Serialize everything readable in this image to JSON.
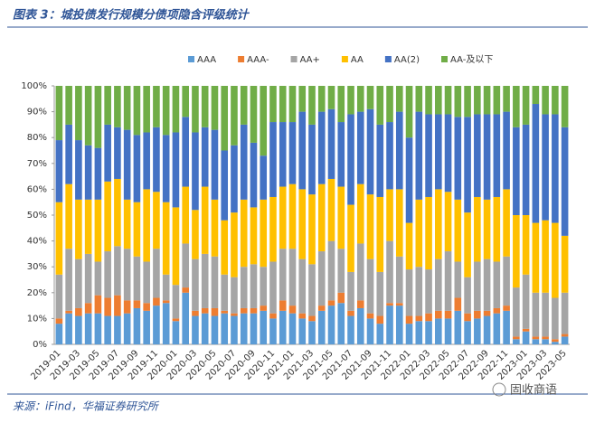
{
  "chart_data": {
    "type": "stacked_bar",
    "title": "图表 3：城投债发行规模分债项隐含评级统计",
    "source": "来源：iFind，华福证券研究所",
    "watermark": "固收商语",
    "categories": [
      "2019-01",
      null,
      "2019-03",
      null,
      "2019-05",
      null,
      "2019-07",
      null,
      "2019-09",
      null,
      "2019-11",
      null,
      "2020-01",
      null,
      "2020-03",
      null,
      "2020-05",
      null,
      "2020-07",
      null,
      "2020-09",
      null,
      "2020-11",
      null,
      "2021-01",
      null,
      "2021-03",
      null,
      "2021-05",
      null,
      "2021-07",
      null,
      "2021-09",
      null,
      "2021-11",
      null,
      "2022-01",
      null,
      "2022-03",
      null,
      "2022-05",
      null,
      "2022-07",
      null,
      "2022-09",
      null,
      "2022-11",
      null,
      "2023-01",
      null,
      "2023-03",
      null,
      "2023-05"
    ],
    "series": [
      {
        "name": "AAA",
        "color": "#5b9bd5",
        "values": [
          8,
          12,
          11,
          12,
          12,
          11,
          11,
          12,
          14,
          13,
          15,
          16,
          9,
          20,
          11,
          12,
          11,
          12,
          11,
          12,
          12,
          13,
          10,
          13,
          12,
          10,
          9,
          13,
          15,
          16,
          11,
          14,
          10,
          8,
          15,
          15,
          8,
          9,
          9,
          10,
          10,
          13,
          9,
          10,
          11,
          12,
          13,
          2,
          5,
          2,
          2,
          1,
          3
        ]
      },
      {
        "name": "AAA-",
        "color": "#ed7d31",
        "values": [
          2,
          1,
          3,
          4,
          7,
          7,
          8,
          5,
          3,
          3,
          3,
          1,
          1,
          2,
          2,
          2,
          3,
          1,
          1,
          2,
          2,
          2,
          2,
          4,
          3,
          2,
          2,
          2,
          2,
          4,
          2,
          3,
          2,
          3,
          1,
          1,
          3,
          2,
          3,
          3,
          3,
          5,
          3,
          3,
          2,
          2,
          2,
          1,
          1,
          1,
          1,
          1,
          1
        ]
      },
      {
        "name": "AA+",
        "color": "#a5a5a5",
        "values": [
          17,
          24,
          19,
          19,
          13,
          18,
          19,
          20,
          17,
          16,
          19,
          10,
          13,
          17,
          20,
          21,
          20,
          14,
          14,
          16,
          17,
          15,
          20,
          20,
          22,
          21,
          20,
          21,
          23,
          17,
          15,
          22,
          21,
          17,
          24,
          18,
          18,
          19,
          17,
          20,
          23,
          14,
          14,
          19,
          20,
          18,
          19,
          19,
          21,
          17,
          17,
          16,
          16
        ]
      },
      {
        "name": "AA",
        "color": "#ffc000",
        "values": [
          28,
          25,
          23,
          21,
          24,
          27,
          26,
          19,
          21,
          28,
          22,
          28,
          30,
          22,
          19,
          26,
          22,
          21,
          25,
          26,
          22,
          26,
          25,
          24,
          25,
          27,
          27,
          26,
          24,
          24,
          26,
          23,
          25,
          29,
          20,
          26,
          18,
          26,
          28,
          27,
          23,
          24,
          25,
          25,
          23,
          25,
          26,
          28,
          23,
          27,
          28,
          29,
          22
        ]
      },
      {
        "name": "AA(2)",
        "color": "#4472c4",
        "values": [
          24,
          23,
          23,
          21,
          20,
          22,
          20,
          27,
          26,
          22,
          25,
          26,
          29,
          27,
          30,
          23,
          27,
          27,
          26,
          29,
          25,
          17,
          29,
          25,
          24,
          30,
          27,
          28,
          27,
          25,
          35,
          28,
          33,
          28,
          26,
          30,
          33,
          34,
          32,
          29,
          30,
          32,
          37,
          32,
          33,
          32,
          30,
          34,
          35,
          46,
          41,
          42,
          42
        ]
      },
      {
        "name": "AA-及以下",
        "color": "#70ad47",
        "values": [
          21,
          15,
          21,
          23,
          24,
          15,
          16,
          17,
          19,
          18,
          16,
          19,
          18,
          12,
          18,
          16,
          17,
          25,
          23,
          15,
          22,
          27,
          14,
          14,
          14,
          10,
          15,
          10,
          9,
          14,
          11,
          10,
          9,
          15,
          14,
          10,
          20,
          10,
          11,
          11,
          11,
          12,
          12,
          11,
          11,
          11,
          10,
          16,
          15,
          7,
          11,
          11,
          16
        ]
      }
    ],
    "ylim": [
      0,
      100
    ],
    "yticks": [
      {
        "value": 0,
        "label": "0%"
      },
      {
        "value": 10,
        "label": "10%"
      },
      {
        "value": 20,
        "label": "20%"
      },
      {
        "value": 30,
        "label": "30%"
      },
      {
        "value": 40,
        "label": "40%"
      },
      {
        "value": 50,
        "label": "50%"
      },
      {
        "value": 60,
        "label": "60%"
      },
      {
        "value": 70,
        "label": "70%"
      },
      {
        "value": 80,
        "label": "80%"
      },
      {
        "value": 90,
        "label": "90%"
      },
      {
        "value": 100,
        "label": "100%"
      }
    ],
    "legend": "top"
  }
}
